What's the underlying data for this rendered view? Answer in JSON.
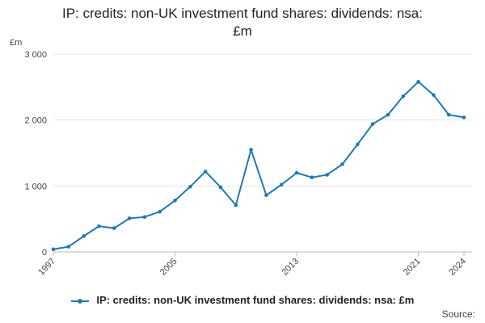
{
  "chart_data": {
    "type": "line",
    "title_lines": [
      "IP: credits: non-UK investment fund shares: dividends: nsa:",
      "£m"
    ],
    "unit_label": "£m",
    "x": [
      "1997",
      "1998",
      "1999",
      "2000",
      "2001",
      "2002",
      "2003",
      "2004",
      "2005",
      "2006",
      "2007",
      "2008",
      "2009",
      "2010",
      "2011",
      "2012",
      "2013",
      "2014",
      "2015",
      "2016",
      "2017",
      "2018",
      "2019",
      "2020",
      "2021",
      "2022",
      "2023",
      "2024"
    ],
    "x_tick_labels": [
      "1997",
      "2005",
      "2013",
      "2021",
      "2024"
    ],
    "y_tick_labels": [
      "0",
      "1 000",
      "2 000",
      "3 000"
    ],
    "y_ticks": [
      0,
      1000,
      2000,
      3000
    ],
    "ylim": [
      0,
      3000
    ],
    "series": [
      {
        "name": "IP: credits: non-UK investment fund shares: dividends: nsa: £m",
        "color": "#1f7ab5",
        "values": [
          40,
          80,
          240,
          390,
          360,
          510,
          530,
          610,
          780,
          990,
          1220,
          980,
          710,
          1550,
          860,
          1020,
          1200,
          1130,
          1170,
          1330,
          1630,
          1940,
          2080,
          2360,
          2580,
          2380,
          2080,
          2040
        ]
      }
    ],
    "grid": true,
    "legend_position": "bottom"
  },
  "legend": {
    "label": "IP: credits: non-UK investment fund shares: dividends: nsa: £m"
  },
  "source_label": "Source:"
}
